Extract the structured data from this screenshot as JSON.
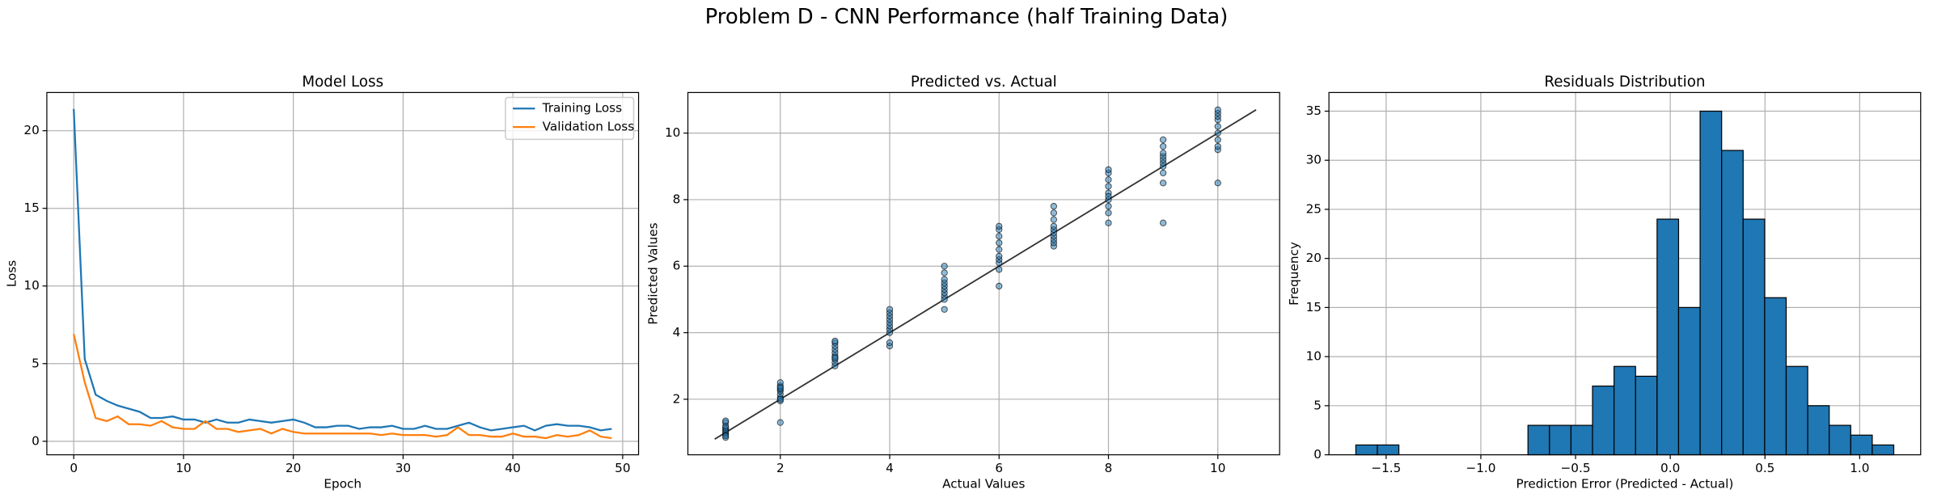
{
  "title": "Problem D - CNN Performance (half Training Data)",
  "chart_data": [
    {
      "type": "line",
      "title": "Model Loss",
      "xlabel": "Epoch",
      "ylabel": "Loss",
      "x": [
        0,
        1,
        2,
        3,
        4,
        5,
        6,
        7,
        8,
        9,
        10,
        11,
        12,
        13,
        14,
        15,
        16,
        17,
        18,
        19,
        20,
        21,
        22,
        23,
        24,
        25,
        26,
        27,
        28,
        29,
        30,
        31,
        32,
        33,
        34,
        35,
        36,
        37,
        38,
        39,
        40,
        41,
        42,
        43,
        44,
        45,
        46,
        47,
        48,
        49
      ],
      "series": [
        {
          "name": "Training Loss",
          "color": "#1f77b4",
          "values": [
            21.4,
            5.3,
            3.0,
            2.6,
            2.3,
            2.1,
            1.9,
            1.5,
            1.5,
            1.6,
            1.4,
            1.4,
            1.2,
            1.4,
            1.2,
            1.2,
            1.4,
            1.3,
            1.2,
            1.3,
            1.4,
            1.2,
            0.9,
            0.9,
            1.0,
            1.0,
            0.8,
            0.9,
            0.9,
            1.0,
            0.8,
            0.8,
            1.0,
            0.8,
            0.8,
            1.0,
            1.2,
            0.9,
            0.7,
            0.8,
            0.9,
            1.0,
            0.7,
            1.0,
            1.1,
            1.0,
            1.0,
            0.9,
            0.7,
            0.8
          ]
        },
        {
          "name": "Validation Loss",
          "color": "#ff7f0e",
          "values": [
            6.9,
            3.8,
            1.5,
            1.3,
            1.6,
            1.1,
            1.1,
            1.0,
            1.3,
            0.9,
            0.8,
            0.8,
            1.3,
            0.8,
            0.8,
            0.6,
            0.7,
            0.8,
            0.5,
            0.8,
            0.6,
            0.5,
            0.5,
            0.5,
            0.5,
            0.5,
            0.5,
            0.5,
            0.4,
            0.5,
            0.4,
            0.4,
            0.4,
            0.3,
            0.4,
            0.9,
            0.4,
            0.4,
            0.3,
            0.3,
            0.5,
            0.3,
            0.3,
            0.2,
            0.4,
            0.3,
            0.4,
            0.7,
            0.3,
            0.2
          ]
        }
      ],
      "xlim": [
        -2.45,
        51.45
      ],
      "xticks": [
        0,
        10,
        20,
        30,
        40,
        50
      ],
      "ylim": [
        -0.87,
        22.46
      ],
      "yticks": [
        0,
        5,
        10,
        15,
        20
      ],
      "grid": true,
      "legend": "upper right"
    },
    {
      "type": "scatter",
      "title": "Predicted vs. Actual",
      "xlabel": "Actual Values",
      "ylabel": "Predicted Values",
      "color": "#1f77b4",
      "x": [
        1,
        1,
        1,
        1,
        1,
        1,
        1,
        1,
        1,
        1,
        2,
        2,
        2,
        2,
        2,
        2,
        2,
        2,
        2,
        2,
        3,
        3,
        3,
        3,
        3,
        3,
        3,
        3,
        3,
        3,
        4,
        4,
        4,
        4,
        4,
        4,
        4,
        4,
        4,
        4,
        5,
        5,
        5,
        5,
        5,
        5,
        5,
        5,
        5,
        5,
        6,
        6,
        6,
        6,
        6,
        6,
        6,
        6,
        6,
        6,
        7,
        7,
        7,
        7,
        7,
        7,
        7,
        7,
        7,
        7,
        8,
        8,
        8,
        8,
        8,
        8,
        8,
        8,
        8,
        8,
        9,
        9,
        9,
        9,
        9,
        9,
        9,
        9,
        9,
        9,
        10,
        10,
        10,
        10,
        10,
        10,
        10,
        10,
        10,
        10
      ],
      "y": [
        0.85,
        0.95,
        1.0,
        1.05,
        1.1,
        1.15,
        1.2,
        1.3,
        1.35,
        0.9,
        1.3,
        1.95,
        2.05,
        2.15,
        2.25,
        2.3,
        2.4,
        2.5,
        2.0,
        2.35,
        3.0,
        3.1,
        3.2,
        3.3,
        3.4,
        3.5,
        3.6,
        3.7,
        3.75,
        3.25,
        3.6,
        3.7,
        4.0,
        4.1,
        4.2,
        4.3,
        4.4,
        4.5,
        4.6,
        4.7,
        4.7,
        5.1,
        5.2,
        5.3,
        5.4,
        5.5,
        5.6,
        5.8,
        6.0,
        5.0,
        5.4,
        5.9,
        6.1,
        6.2,
        6.5,
        6.7,
        6.9,
        7.1,
        7.2,
        6.3,
        6.6,
        6.7,
        6.8,
        6.9,
        7.0,
        7.1,
        7.2,
        7.4,
        7.6,
        7.8,
        7.3,
        7.6,
        7.8,
        8.0,
        8.2,
        8.4,
        8.6,
        8.8,
        8.9,
        8.1,
        7.3,
        8.5,
        8.8,
        9.0,
        9.1,
        9.2,
        9.3,
        9.4,
        9.6,
        9.8,
        8.5,
        9.5,
        9.6,
        9.8,
        10.0,
        10.2,
        10.4,
        10.5,
        10.6,
        10.7
      ],
      "diagonal": {
        "x": [
          0.8,
          10.7
        ],
        "y": [
          0.8,
          10.7
        ],
        "color": "#333333"
      },
      "xlim": [
        0.31,
        11.13
      ],
      "xticks": [
        2,
        4,
        6,
        8,
        10
      ],
      "ylim": [
        0.33,
        11.22
      ],
      "yticks": [
        2,
        4,
        6,
        8,
        10
      ],
      "grid": true
    },
    {
      "type": "histogram",
      "title": "Residuals Distribution",
      "xlabel": "Prediction Error (Predicted - Actual)",
      "ylabel": "Frequency",
      "color": "#1f77b4",
      "bins": [
        -1.66,
        -1.5464,
        -1.4328,
        -1.3192,
        -1.2056,
        -1.092,
        -0.9784,
        -0.8648,
        -0.7512,
        -0.6376,
        -0.524,
        -0.4104,
        -0.2968,
        -0.1832,
        -0.0696,
        0.044,
        0.1576,
        0.2712,
        0.3848,
        0.4984,
        0.612,
        0.7256,
        0.8392,
        0.9528,
        1.0664,
        1.18
      ],
      "values": [
        1,
        1,
        0,
        0,
        0,
        0,
        0,
        0,
        3,
        3,
        3,
        7,
        9,
        8,
        24,
        15,
        35,
        31,
        24,
        16,
        9,
        5,
        3,
        2,
        1
      ],
      "xlim": [
        -1.802,
        1.322
      ],
      "xticks": [
        {
          "value": -1.5,
          "label": "−1.5"
        },
        {
          "value": -1.0,
          "label": "−1.0"
        },
        {
          "value": -0.5,
          "label": "−0.5"
        },
        {
          "value": 0.0,
          "label": "0.0"
        },
        {
          "value": 0.5,
          "label": "0.5"
        },
        {
          "value": 1.0,
          "label": "1.0"
        }
      ],
      "ylim": [
        0,
        36.9
      ],
      "yticks": [
        0,
        5,
        10,
        15,
        20,
        25,
        30,
        35
      ],
      "grid": true
    }
  ]
}
